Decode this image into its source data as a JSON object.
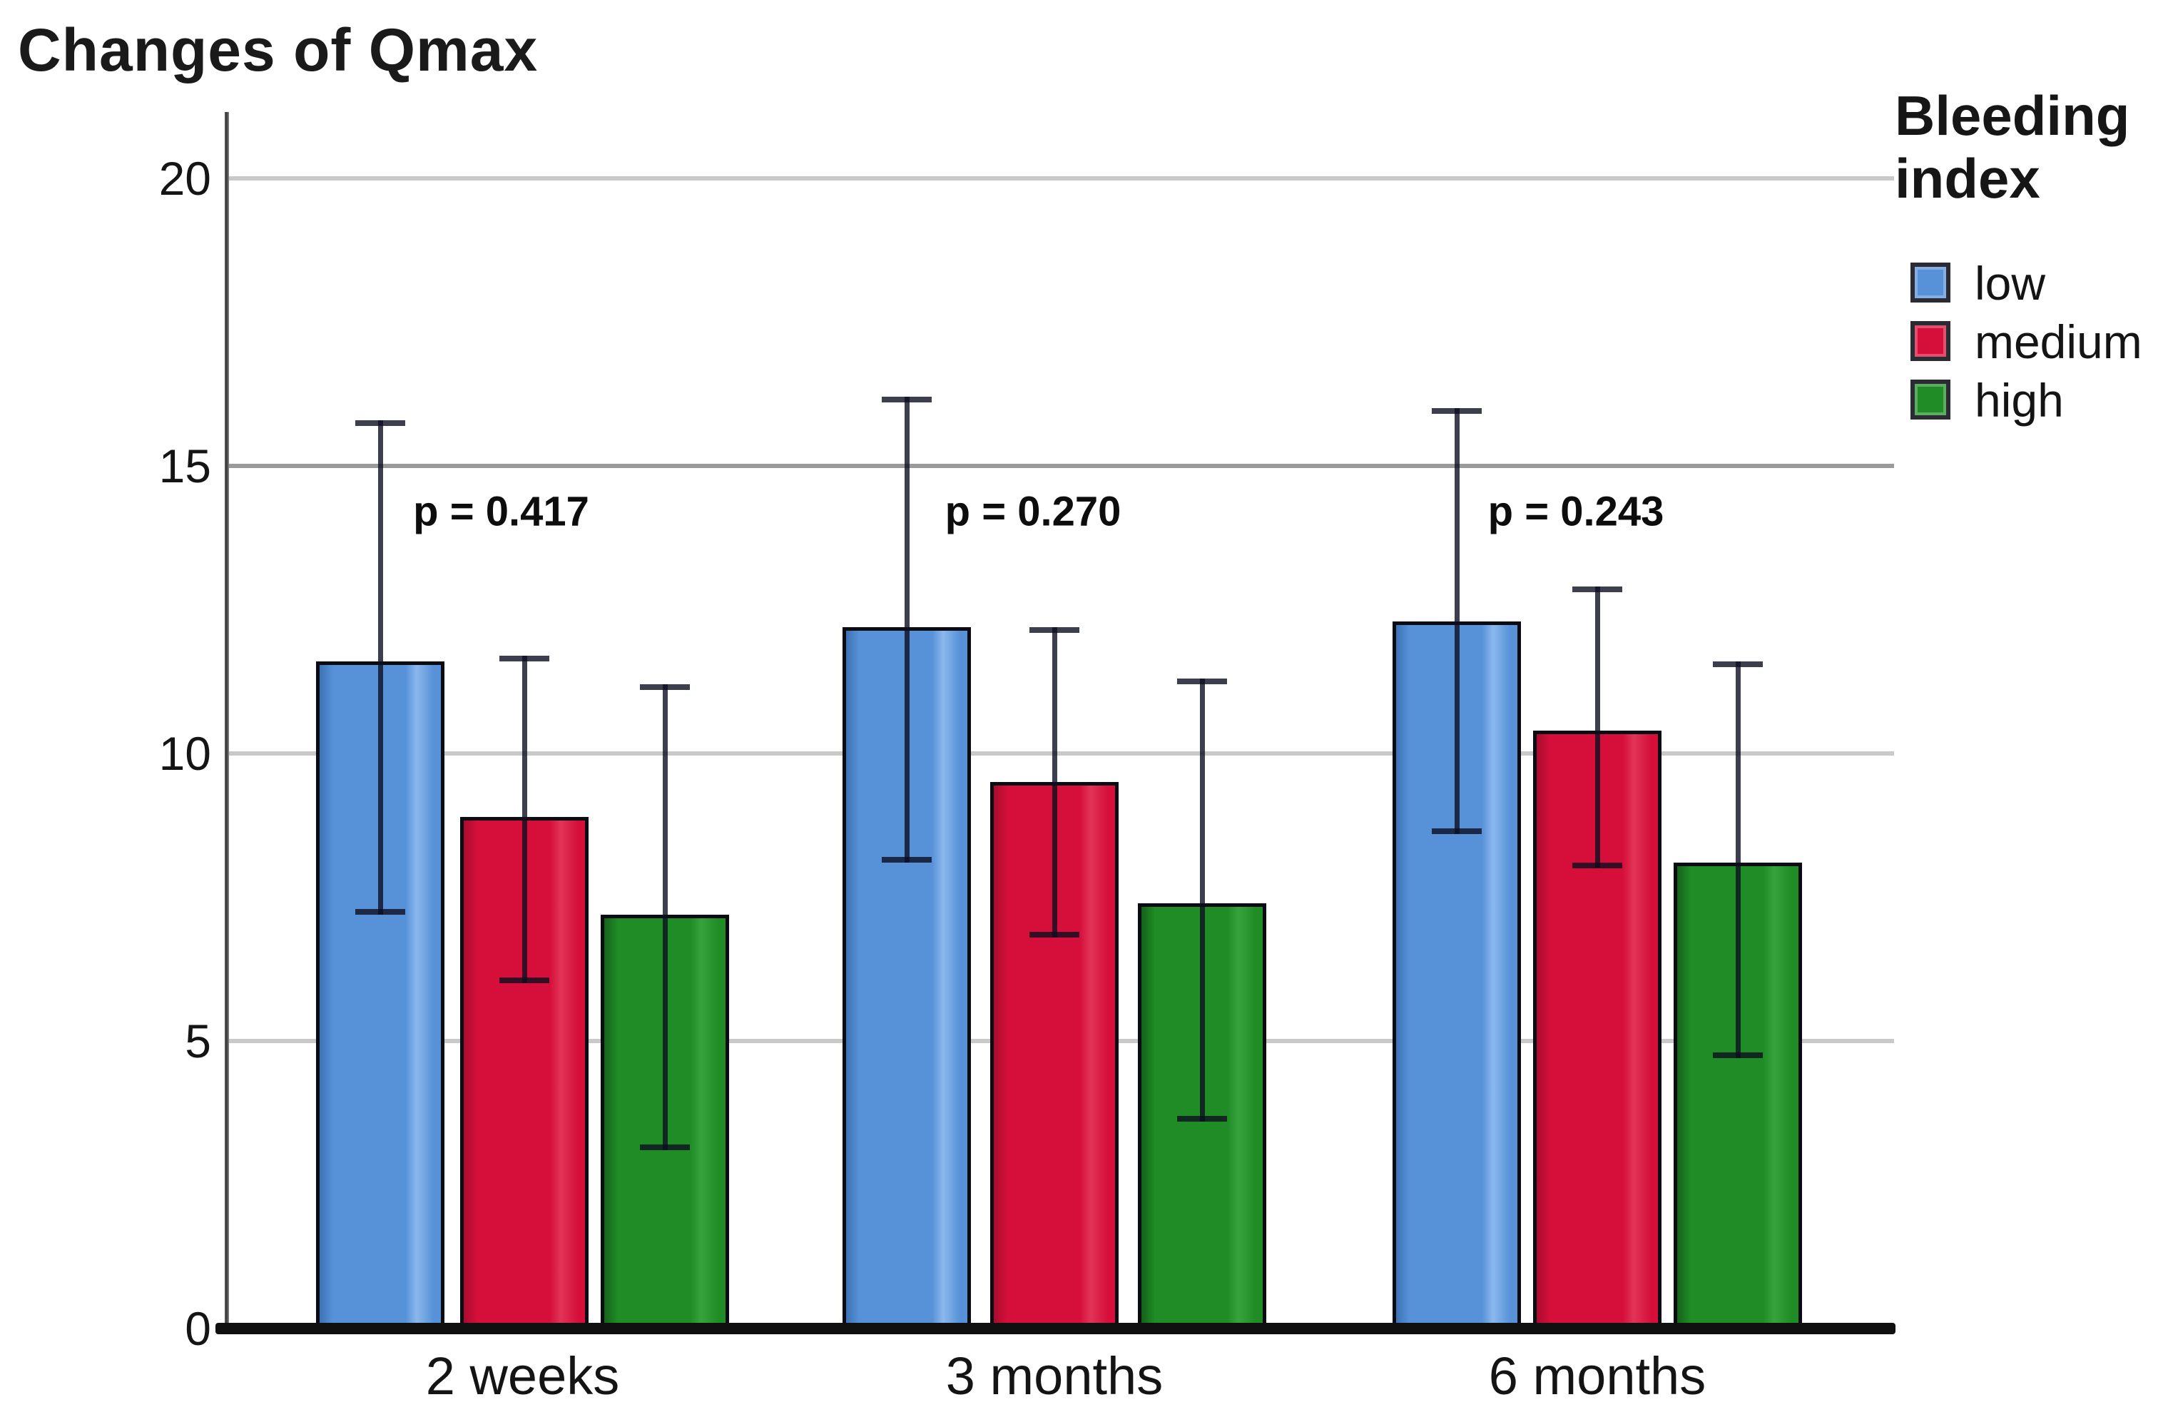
{
  "chart_data": {
    "type": "bar",
    "title": "Changes of Qmax",
    "categories": [
      "2 weeks",
      "3 months",
      "6 months"
    ],
    "series": [
      {
        "name": "low",
        "color": "#5791d8",
        "color_dark": "#3d72b4",
        "color_light": "#8ab8ec",
        "values": [
          11.6,
          12.2,
          12.3
        ],
        "err_low": [
          7.2,
          8.1,
          8.6
        ],
        "err_high": [
          15.8,
          16.2,
          16.0
        ]
      },
      {
        "name": "medium",
        "color": "#d50f3a",
        "color_dark": "#a80b2d",
        "color_light": "#e23458",
        "values": [
          8.9,
          9.5,
          10.4
        ],
        "err_low": [
          6.0,
          6.8,
          8.0
        ],
        "err_high": [
          11.7,
          12.2,
          12.9
        ]
      },
      {
        "name": "high",
        "color": "#1f8c26",
        "color_dark": "#14621a",
        "color_light": "#37a33d",
        "values": [
          7.2,
          7.4,
          8.1
        ],
        "err_low": [
          3.1,
          3.6,
          4.7
        ],
        "err_high": [
          11.2,
          11.3,
          11.6
        ]
      }
    ],
    "p_values": [
      "p = 0.417",
      "p = 0.270",
      "p = 0.243"
    ],
    "p_value_height": 14.2,
    "legend": {
      "title": "Bleeding index",
      "entries": [
        "low",
        "medium",
        "high"
      ]
    },
    "yticks": [
      0,
      5,
      10,
      15,
      20
    ],
    "ylim": [
      0,
      20
    ],
    "grid": "horizontal",
    "legend_position": "right"
  },
  "colors": {
    "gridline": "#c9c9c9",
    "gridline_15": "#9a9a9a",
    "axis": "#474747",
    "baseline": "#101010",
    "errorbar": "rgba(12,14,34,0.80)",
    "text": "#111111"
  }
}
